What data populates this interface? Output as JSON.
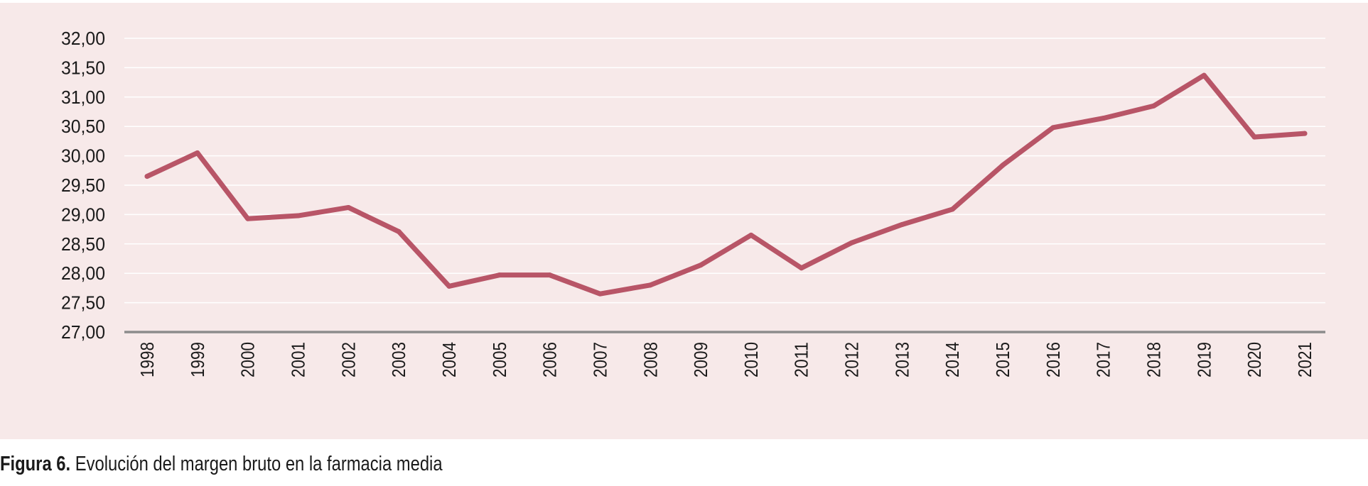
{
  "caption": {
    "prefix": "Figura 6.",
    "text": "Evolución del margen bruto en la farmacia media"
  },
  "colors": {
    "background": "#f7e9e9",
    "line": "#b85567",
    "gridline": "#ffffff",
    "axis": "#8c8c8c"
  },
  "chart_data": {
    "type": "line",
    "title": "",
    "xlabel": "",
    "ylabel": "",
    "ylim": [
      27,
      32
    ],
    "yticks": [
      27,
      27.5,
      28,
      28.5,
      29,
      29.5,
      30,
      30.5,
      31,
      31.5,
      32
    ],
    "ytick_labels": [
      "27,00",
      "27,50",
      "28,00",
      "28,50",
      "29,00",
      "29,50",
      "30,00",
      "30,50",
      "31,00",
      "31,50",
      "32,00"
    ],
    "grid": true,
    "legend": "none",
    "categories": [
      "1998",
      "1999",
      "2000",
      "2001",
      "2002",
      "2003",
      "2004",
      "2005",
      "2006",
      "2007",
      "2008",
      "2009",
      "2010",
      "2011",
      "2012",
      "2013",
      "2014",
      "2015",
      "2016",
      "2017",
      "2018",
      "2019",
      "2020",
      "2021"
    ],
    "series": [
      {
        "values": [
          29.65,
          30.05,
          28.93,
          28.98,
          29.12,
          28.71,
          27.78,
          27.97,
          27.97,
          27.65,
          27.8,
          28.14,
          28.65,
          28.09,
          28.52,
          28.83,
          29.09,
          29.84,
          30.48,
          30.64,
          30.85,
          31.37,
          30.32,
          30.38
        ]
      }
    ]
  }
}
